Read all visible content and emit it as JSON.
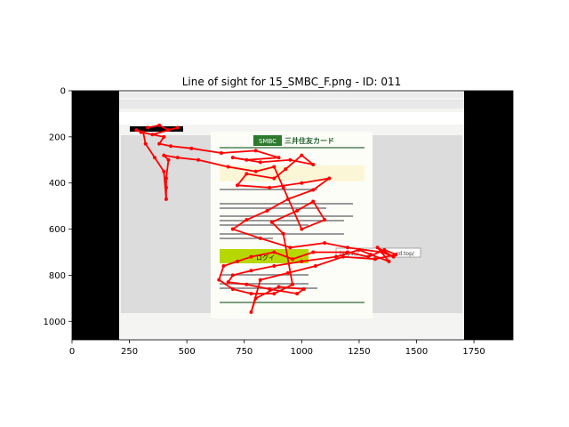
{
  "chart_data": {
    "type": "scatter",
    "title": "Line of sight for 15_SMBC_F.png - ID: 011",
    "xlabel": "",
    "ylabel": "",
    "xlim": [
      0,
      1920
    ],
    "ylim": [
      1080,
      0
    ],
    "x_ticks": [
      0,
      250,
      500,
      750,
      1000,
      1250,
      1500,
      1750
    ],
    "y_ticks": [
      0,
      200,
      400,
      600,
      800,
      1000
    ],
    "grid": false,
    "background_image": {
      "extent_x": [
        210,
        1720
      ],
      "extent_y": [
        0,
        1080
      ],
      "inner_x": [
        210,
        1720
      ],
      "inner_y": [
        0,
        1080
      ],
      "brand_text": "SMBC",
      "brand_name": "三井住友カード",
      "url_text": "https://",
      "url_tail": "rd.top/",
      "login_text": "ログイ"
    },
    "series": [
      {
        "color": "#ff0000",
        "points": [
          [
            330,
            160
          ],
          [
            380,
            150
          ],
          [
            420,
            170
          ],
          [
            460,
            160
          ],
          [
            350,
            190
          ],
          [
            300,
            180
          ],
          [
            400,
            200
          ],
          [
            380,
            230
          ],
          [
            430,
            240
          ],
          [
            520,
            250
          ],
          [
            650,
            270
          ],
          [
            800,
            260
          ],
          [
            900,
            290
          ],
          [
            760,
            300
          ],
          [
            700,
            290
          ],
          [
            820,
            310
          ],
          [
            950,
            300
          ],
          [
            1050,
            320
          ],
          [
            1000,
            280
          ],
          [
            930,
            340
          ],
          [
            880,
            380
          ],
          [
            760,
            360
          ],
          [
            720,
            410
          ],
          [
            860,
            420
          ],
          [
            1000,
            400
          ],
          [
            1120,
            380
          ],
          [
            1050,
            430
          ],
          [
            940,
            470
          ],
          [
            850,
            520
          ],
          [
            760,
            560
          ],
          [
            700,
            600
          ],
          [
            820,
            640
          ],
          [
            950,
            680
          ],
          [
            1100,
            660
          ],
          [
            1200,
            680
          ],
          [
            1350,
            700
          ],
          [
            1400,
            720
          ],
          [
            1330,
            680
          ],
          [
            1380,
            740
          ],
          [
            1300,
            710
          ],
          [
            1250,
            690
          ],
          [
            1150,
            720
          ],
          [
            1000,
            740
          ],
          [
            880,
            760
          ],
          [
            780,
            780
          ],
          [
            700,
            800
          ],
          [
            680,
            830
          ],
          [
            760,
            840
          ],
          [
            860,
            860
          ],
          [
            980,
            880
          ],
          [
            1010,
            860
          ],
          [
            900,
            850
          ],
          [
            800,
            900
          ],
          [
            780,
            960
          ],
          [
            820,
            820
          ],
          [
            940,
            790
          ],
          [
            1060,
            760
          ],
          [
            1180,
            720
          ],
          [
            1320,
            730
          ],
          [
            1410,
            710
          ],
          [
            1360,
            690
          ],
          [
            1290,
            720
          ],
          [
            1200,
            700
          ],
          [
            1050,
            700
          ],
          [
            960,
            730
          ],
          [
            880,
            700
          ],
          [
            780,
            720
          ],
          [
            720,
            740
          ],
          [
            660,
            760
          ],
          [
            640,
            820
          ],
          [
            700,
            860
          ],
          [
            780,
            880
          ],
          [
            880,
            880
          ],
          [
            960,
            840
          ],
          [
            920,
            620
          ],
          [
            870,
            570
          ],
          [
            980,
            520
          ],
          [
            1050,
            480
          ],
          [
            1100,
            560
          ],
          [
            1000,
            600
          ],
          [
            920,
            420
          ],
          [
            880,
            330
          ],
          [
            800,
            350
          ],
          [
            680,
            330
          ],
          [
            550,
            300
          ],
          [
            460,
            290
          ],
          [
            400,
            280
          ],
          [
            420,
            300
          ],
          [
            410,
            380
          ],
          [
            410,
            420
          ],
          [
            410,
            470
          ],
          [
            400,
            350
          ],
          [
            360,
            290
          ],
          [
            320,
            230
          ],
          [
            310,
            180
          ],
          [
            280,
            170
          ]
        ]
      }
    ]
  }
}
